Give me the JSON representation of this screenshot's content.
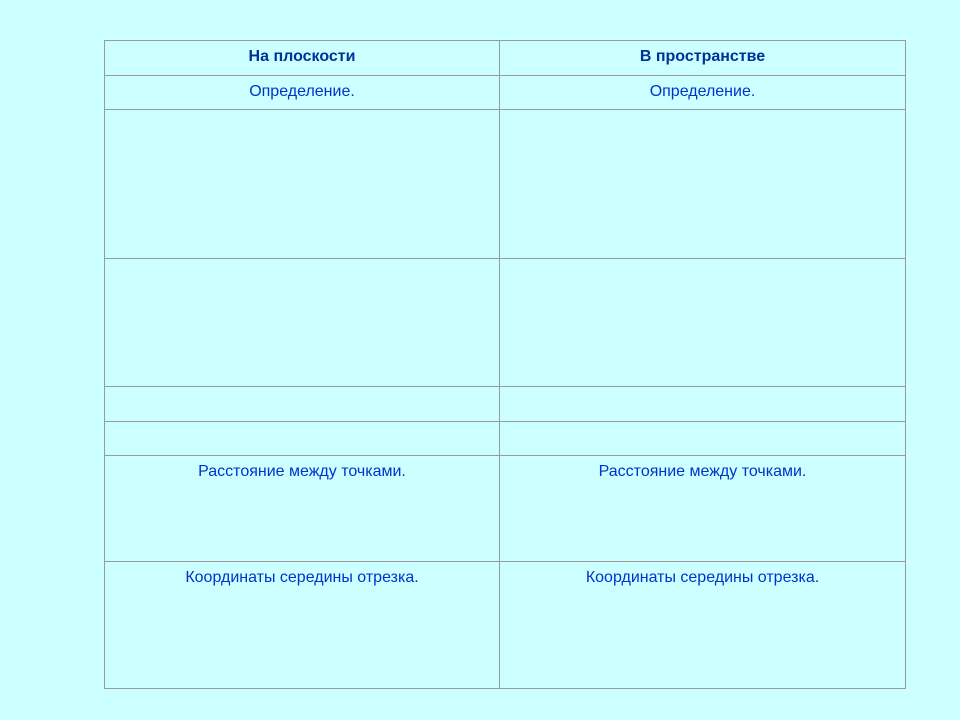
{
  "table": {
    "headers": [
      "На плоскости",
      "В пространстве"
    ],
    "rows": [
      [
        "Определение.",
        "Определение."
      ],
      [
        "",
        ""
      ],
      [
        "",
        ""
      ],
      [
        "",
        ""
      ],
      [
        "",
        ""
      ],
      [
        "Расстояние между точками.",
        "Расстояние между точками."
      ],
      [
        "Координаты середины отрезка.",
        "Координаты середины отрезка."
      ]
    ]
  },
  "colors": {
    "background": "#ccffff",
    "text": "#0033cc",
    "header_text": "#003399"
  }
}
